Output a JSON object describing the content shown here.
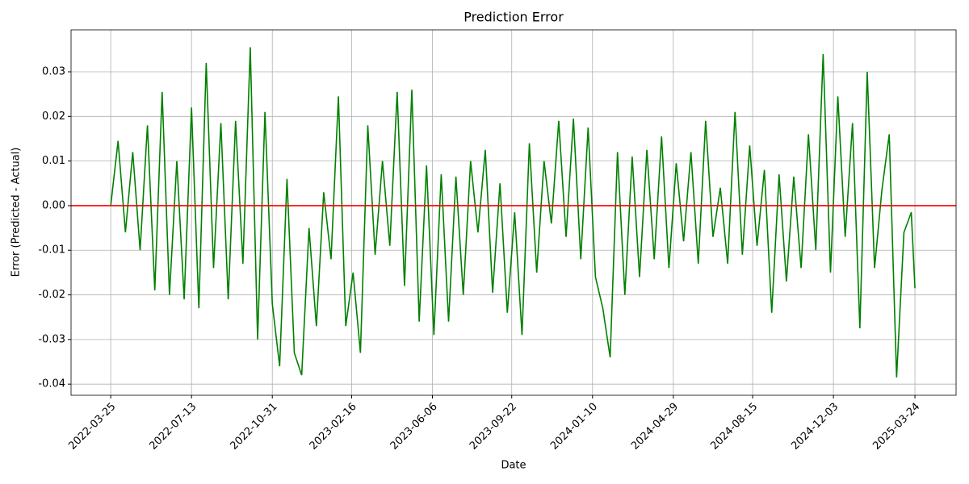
{
  "chart_data": {
    "type": "line",
    "title": "Prediction Error",
    "x_label": "Date",
    "y_label": "Error (Predicted - Actual)",
    "x": [
      "2022-03-25",
      "2022-04-04",
      "2022-04-14",
      "2022-04-24",
      "2022-05-04",
      "2022-05-14",
      "2022-05-24",
      "2022-06-03",
      "2022-06-13",
      "2022-06-23",
      "2022-07-03",
      "2022-07-13",
      "2022-07-23",
      "2022-08-02",
      "2022-08-12",
      "2022-08-22",
      "2022-09-01",
      "2022-09-11",
      "2022-09-21",
      "2022-10-01",
      "2022-10-11",
      "2022-10-21",
      "2022-10-31",
      "2022-11-10",
      "2022-11-20",
      "2022-11-30",
      "2022-12-10",
      "2022-12-20",
      "2022-12-30",
      "2023-01-09",
      "2023-01-19",
      "2023-01-29",
      "2023-02-08",
      "2023-02-18",
      "2023-02-28",
      "2023-03-10",
      "2023-03-20",
      "2023-03-30",
      "2023-04-09",
      "2023-04-19",
      "2023-04-29",
      "2023-05-09",
      "2023-05-19",
      "2023-05-29",
      "2023-06-08",
      "2023-06-18",
      "2023-06-28",
      "2023-07-08",
      "2023-07-18",
      "2023-07-28",
      "2023-08-07",
      "2023-08-17",
      "2023-08-27",
      "2023-09-06",
      "2023-09-16",
      "2023-09-26",
      "2023-10-06",
      "2023-10-16",
      "2023-10-26",
      "2023-11-05",
      "2023-11-15",
      "2023-11-25",
      "2023-12-05",
      "2023-12-15",
      "2023-12-25",
      "2024-01-04",
      "2024-01-14",
      "2024-01-24",
      "2024-02-03",
      "2024-02-13",
      "2024-02-23",
      "2024-03-04",
      "2024-03-14",
      "2024-03-24",
      "2024-04-03",
      "2024-04-13",
      "2024-04-23",
      "2024-05-03",
      "2024-05-13",
      "2024-05-23",
      "2024-06-02",
      "2024-06-12",
      "2024-06-22",
      "2024-07-02",
      "2024-07-12",
      "2024-07-22",
      "2024-08-01",
      "2024-08-11",
      "2024-08-21",
      "2024-08-31",
      "2024-09-10",
      "2024-09-20",
      "2024-09-30",
      "2024-10-10",
      "2024-10-20",
      "2024-10-30",
      "2024-11-09",
      "2024-11-19",
      "2024-11-29",
      "2024-12-09",
      "2024-12-19",
      "2024-12-29",
      "2025-01-08",
      "2025-01-18",
      "2025-01-28",
      "2025-02-07",
      "2025-02-17",
      "2025-02-27",
      "2025-03-09",
      "2025-03-19",
      "2025-03-24"
    ],
    "series": [
      {
        "color": "green",
        "values": [
          0.0,
          0.0145,
          -0.006,
          0.012,
          -0.01,
          0.018,
          -0.019,
          0.0255,
          -0.02,
          0.01,
          -0.021,
          0.022,
          -0.023,
          0.032,
          -0.014,
          0.0185,
          -0.021,
          0.019,
          -0.013,
          0.0355,
          -0.03,
          0.021,
          -0.022,
          -0.036,
          0.006,
          -0.033,
          -0.038,
          -0.005,
          -0.027,
          0.003,
          -0.012,
          0.0245,
          -0.027,
          -0.015,
          -0.033,
          0.018,
          -0.011,
          0.01,
          -0.009,
          0.0255,
          -0.018,
          0.026,
          -0.026,
          0.009,
          -0.029,
          0.007,
          -0.026,
          0.0065,
          -0.02,
          0.01,
          -0.006,
          0.0125,
          -0.0195,
          0.005,
          -0.024,
          -0.0015,
          -0.029,
          0.014,
          -0.015,
          0.01,
          -0.004,
          0.019,
          -0.007,
          0.0195,
          -0.012,
          0.0175,
          -0.016,
          -0.023,
          -0.034,
          0.012,
          -0.02,
          0.011,
          -0.016,
          0.0125,
          -0.012,
          0.0155,
          -0.014,
          0.0095,
          -0.008,
          0.012,
          -0.013,
          0.019,
          -0.007,
          0.004,
          -0.013,
          0.021,
          -0.011,
          0.0135,
          -0.009,
          0.008,
          -0.024,
          0.007,
          -0.017,
          0.0065,
          -0.014,
          0.016,
          -0.01,
          0.034,
          -0.015,
          0.0245,
          -0.007,
          0.0185,
          -0.0275,
          0.03,
          -0.014,
          0.0035,
          0.016,
          -0.0385,
          -0.006,
          -0.0015,
          -0.0185
        ]
      }
    ],
    "reference_line": 0,
    "reference_color": "red",
    "xlim": [
      "2022-01-30",
      "2025-05-19"
    ],
    "xticks": [
      "2022-03-25",
      "2022-07-13",
      "2022-10-31",
      "2023-02-16",
      "2023-06-06",
      "2023-09-22",
      "2024-01-10",
      "2024-04-29",
      "2024-08-15",
      "2024-12-03",
      "2025-03-24"
    ],
    "ylim": [
      -0.0425,
      0.0394
    ],
    "yticks": [
      {
        "value": -0.04,
        "label": "-0.04"
      },
      {
        "value": -0.03,
        "label": "-0.03"
      },
      {
        "value": -0.02,
        "label": "-0.02"
      },
      {
        "value": -0.01,
        "label": "-0.01"
      },
      {
        "value": 0,
        "label": "0.00"
      },
      {
        "value": 0.01,
        "label": "0.01"
      },
      {
        "value": 0.02,
        "label": "0.02"
      },
      {
        "value": 0.03,
        "label": "0.03"
      }
    ],
    "grid": true
  }
}
